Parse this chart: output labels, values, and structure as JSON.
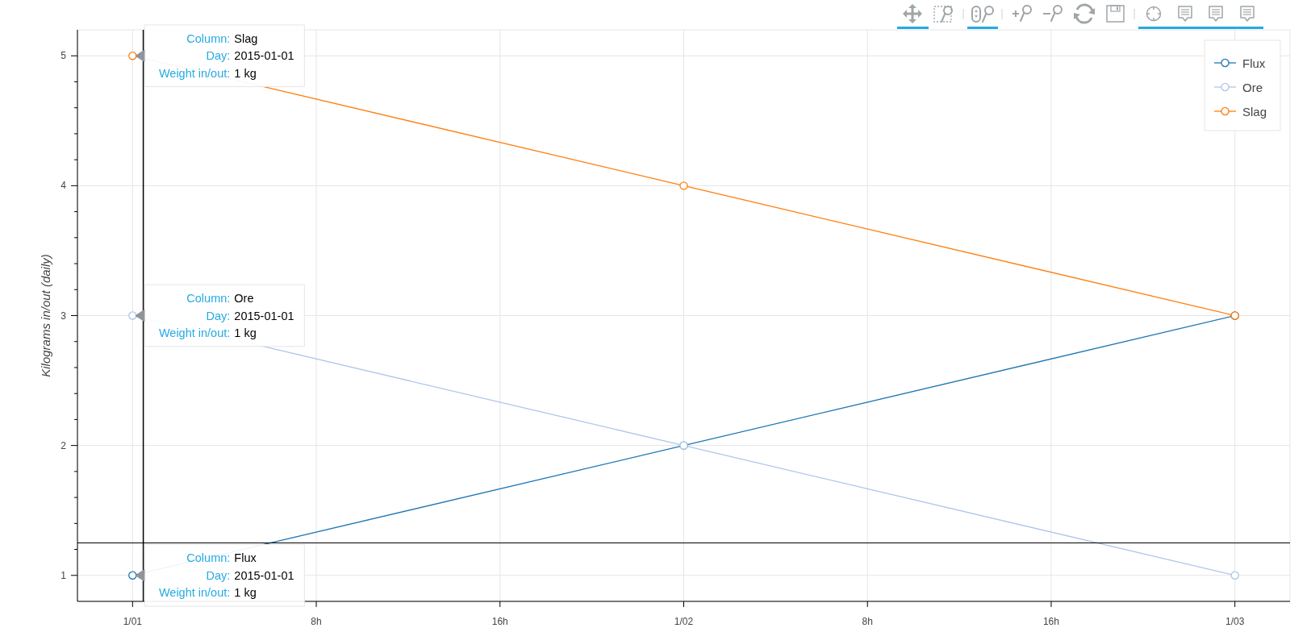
{
  "chart_data": {
    "type": "line",
    "ylabel": "Kilograms in/out (daily)",
    "x": [
      "2015-01-01",
      "2015-01-02",
      "2015-01-03"
    ],
    "series": [
      {
        "name": "Flux",
        "color": "#1f77b4",
        "values": [
          1,
          2,
          3
        ]
      },
      {
        "name": "Ore",
        "color": "#aec7e8",
        "values": [
          3,
          2,
          1
        ]
      },
      {
        "name": "Slag",
        "color": "#ff7f0e",
        "values": [
          5,
          4,
          3
        ]
      }
    ],
    "xlim": [
      "2014-12-31T21:36",
      "2015-01-03T02:24"
    ],
    "ylim": [
      0.8,
      5.2
    ],
    "xticks": [
      {
        "value": "2015-01-01",
        "label": "1/01"
      },
      {
        "value": "2015-01-01T08:00",
        "label": "8h"
      },
      {
        "value": "2015-01-01T16:00",
        "label": "16h"
      },
      {
        "value": "2015-01-02",
        "label": "1/02"
      },
      {
        "value": "2015-01-02T08:00",
        "label": "8h"
      },
      {
        "value": "2015-01-02T16:00",
        "label": "16h"
      },
      {
        "value": "2015-01-03",
        "label": "1/03"
      }
    ],
    "yticks": [
      1,
      {
        "value": 1.2,
        "label": null
      },
      {
        "value": 1.4,
        "label": null
      },
      {
        "value": 1.6,
        "label": null
      },
      {
        "value": 1.8,
        "label": null
      },
      2,
      {
        "value": 2.2,
        "label": null
      },
      {
        "value": 2.4,
        "label": null
      },
      {
        "value": 2.6,
        "label": null
      },
      {
        "value": 2.8,
        "label": null
      },
      3,
      {
        "value": 3.2,
        "label": null
      },
      {
        "value": 3.4,
        "label": null
      },
      {
        "value": 3.6,
        "label": null
      },
      {
        "value": 3.8,
        "label": null
      },
      4,
      {
        "value": 4.2,
        "label": null
      },
      {
        "value": 4.4,
        "label": null
      },
      {
        "value": 4.6,
        "label": null
      },
      {
        "value": 4.8,
        "label": null
      },
      5
    ],
    "grid": true,
    "legend": "top right",
    "marker": "circle",
    "line_style": "solid",
    "ref_lines": [
      {
        "axis": "x",
        "value": "2015-01-01T00:28",
        "color": "#000000"
      },
      {
        "axis": "y",
        "value": 1.25,
        "color": "#000000"
      }
    ],
    "annotations": [
      {
        "text": "Column: Slag\nDay: 2015-01-01\nWeight in/out: 1 kg",
        "x": "2015-01-01",
        "y": 5
      },
      {
        "text": "Column: Ore\nDay: 2015-01-01\nWeight in/out: 1 kg",
        "x": "2015-01-01",
        "y": 3
      },
      {
        "text": "Column: Flux\nDay: 2015-01-01\nWeight in/out: 1 kg",
        "x": "2015-01-01",
        "y": 1
      }
    ]
  }
}
